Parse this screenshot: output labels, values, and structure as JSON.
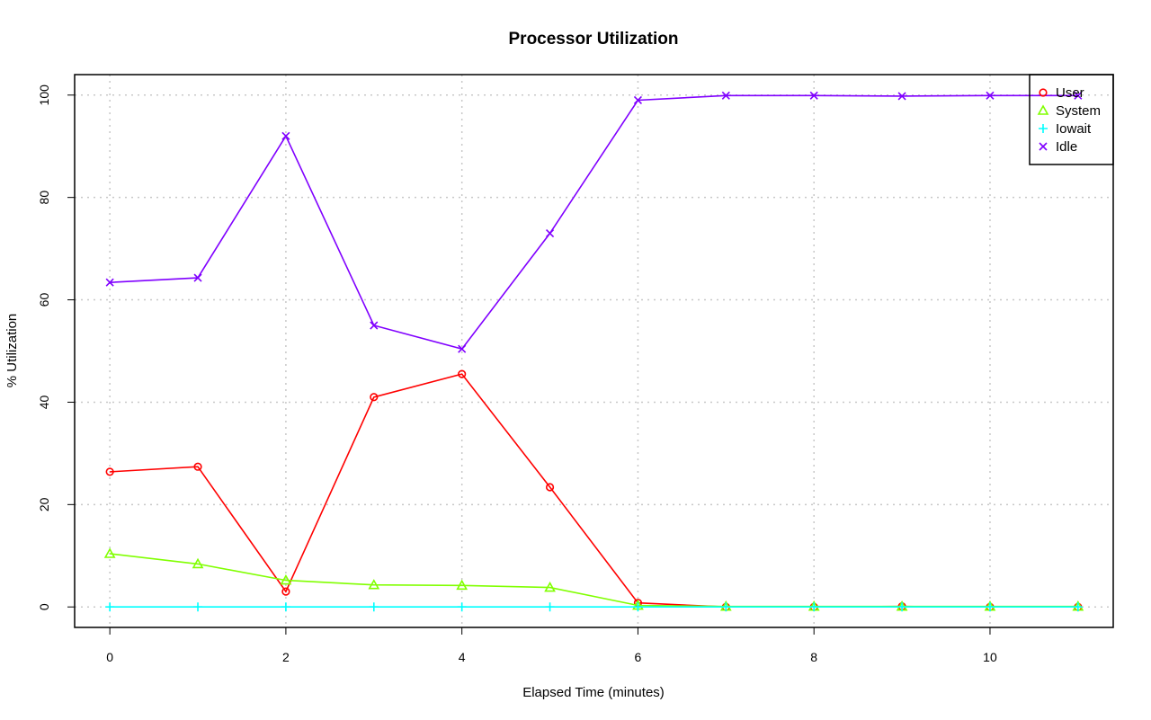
{
  "chart_data": {
    "type": "line",
    "title": "Processor Utilization",
    "xlabel": "Elapsed Time (minutes)",
    "ylabel": "% Utilization",
    "xlim": [
      -0.4,
      11.4
    ],
    "ylim": [
      -4,
      104
    ],
    "xticks": [
      0,
      2,
      4,
      6,
      8,
      10
    ],
    "yticks": [
      0,
      20,
      40,
      60,
      80,
      100
    ],
    "grid": true,
    "legend_position": "top-right",
    "x": [
      0,
      1,
      2,
      3,
      4,
      5,
      6,
      7,
      8,
      9,
      10,
      11
    ],
    "series": [
      {
        "name": "User",
        "color": "#ff0000",
        "marker": "circle",
        "values": [
          26.4,
          27.4,
          3.0,
          41.0,
          45.5,
          23.4,
          0.8,
          0.0,
          0.0,
          0.1,
          0.0,
          0.0
        ]
      },
      {
        "name": "System",
        "color": "#80ff00",
        "marker": "triangle",
        "values": [
          10.4,
          8.4,
          5.2,
          4.3,
          4.2,
          3.8,
          0.3,
          0.1,
          0.1,
          0.1,
          0.1,
          0.1
        ]
      },
      {
        "name": "Iowait",
        "color": "#00ffff",
        "marker": "plus",
        "values": [
          0,
          0,
          0,
          0,
          0,
          0,
          0,
          0,
          0,
          0,
          0,
          0
        ]
      },
      {
        "name": "Idle",
        "color": "#8000ff",
        "marker": "cross",
        "values": [
          63.4,
          64.3,
          92.0,
          55.0,
          50.4,
          73.0,
          99.0,
          99.9,
          99.9,
          99.8,
          99.9,
          99.9
        ]
      }
    ]
  }
}
